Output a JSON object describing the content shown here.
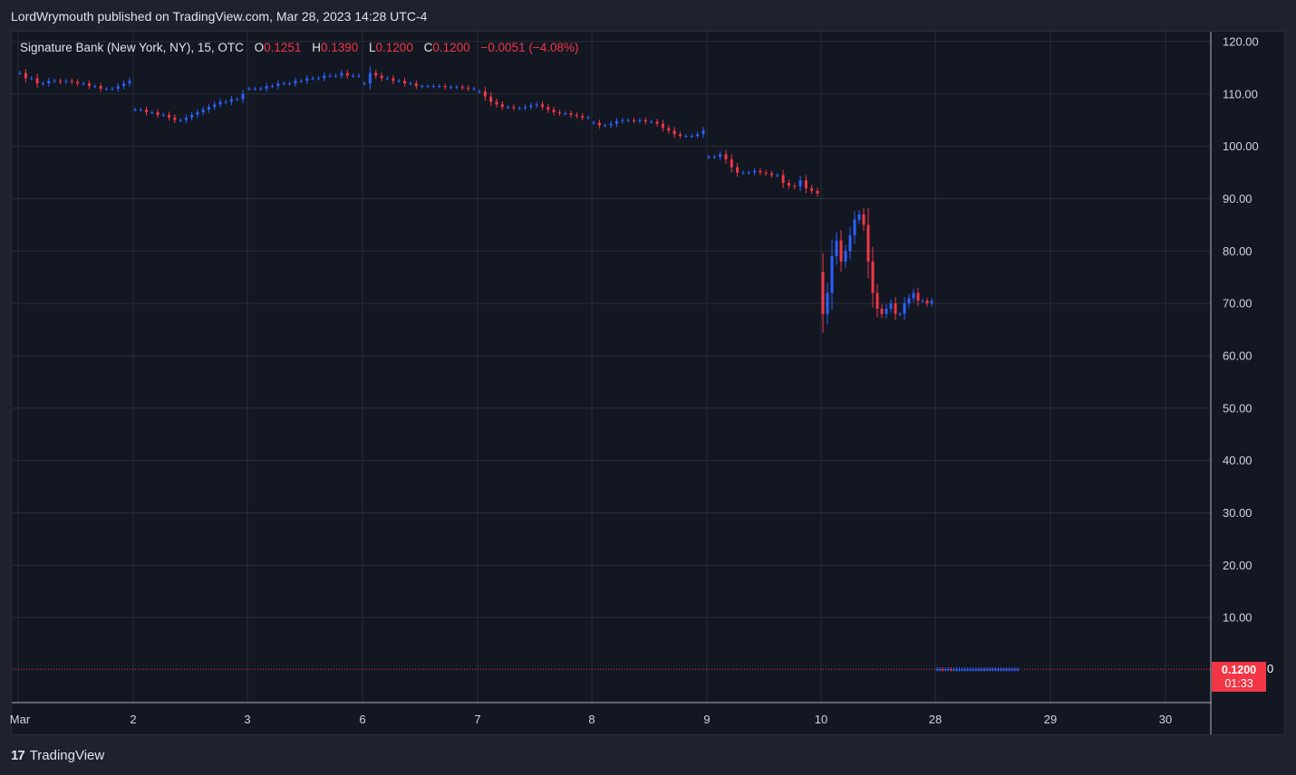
{
  "header": {
    "published_by": "LordWrymouth published on TradingView.com, Mar 28, 2023 14:28 UTC-4"
  },
  "legend": {
    "title": "Signature Bank (New York, NY), 15, OTC",
    "o_label": "O",
    "o_value": "0.1251",
    "h_label": "H",
    "h_value": "0.1390",
    "l_label": "L",
    "l_value": "0.1200",
    "c_label": "C",
    "c_value": "0.1200",
    "change": "−0.0051 (−4.08%)"
  },
  "last_price": {
    "price": "0.1200",
    "countdown": "01:33",
    "suffix": "0"
  },
  "footer": {
    "brand": "TradingView"
  },
  "colors": {
    "up": "#2962ff",
    "down": "#f23645",
    "grid": "#2a2e39",
    "bg": "#131722"
  },
  "chart_data": {
    "type": "candlestick",
    "x_ticks": [
      "Mar",
      "2",
      "3",
      "6",
      "7",
      "8",
      "9",
      "10",
      "28",
      "29",
      "30"
    ],
    "y_ticks": [
      "120.00",
      "110.00",
      "100.00",
      "90.00",
      "80.00",
      "70.00",
      "60.00",
      "50.00",
      "40.00",
      "30.00",
      "20.00",
      "10.00"
    ],
    "ylim": [
      0,
      122
    ],
    "series": [
      {
        "day": "Mar",
        "close": [
          114,
          113,
          113,
          112,
          112,
          112.5,
          112.5,
          112.3,
          112.5,
          112.3,
          112,
          112,
          111.5,
          111.5,
          111,
          111,
          111,
          111.5,
          112,
          112.5
        ]
      },
      {
        "day": "2",
        "close": [
          107,
          107,
          106.5,
          106.5,
          106,
          106,
          105.5,
          105,
          105,
          105.5,
          106,
          106.5,
          107,
          107.5,
          108,
          108.5,
          108.5,
          109,
          109,
          110
        ]
      },
      {
        "day": "3",
        "close": [
          111,
          111,
          111,
          111.5,
          111.5,
          112,
          112,
          112,
          112.5,
          112.5,
          113,
          113,
          113,
          113.5,
          113.5,
          113.5,
          114,
          113.5,
          113.5,
          113.5
        ]
      },
      {
        "day": "6",
        "close": [
          112,
          114,
          113.5,
          113,
          113,
          112.5,
          112.5,
          112,
          112,
          111.5,
          111.5,
          111.5,
          111.5,
          111.5,
          111.3,
          111.3,
          111.3,
          111.2,
          111,
          111
        ]
      },
      {
        "day": "7",
        "close": [
          110.5,
          109.5,
          108.5,
          108,
          107.5,
          107.5,
          107.3,
          107.3,
          107.5,
          107.8,
          108,
          107.5,
          107,
          106.5,
          106.3,
          106.3,
          106,
          105.8,
          105.5,
          105.5
        ]
      },
      {
        "day": "8",
        "close": [
          104.5,
          104,
          104,
          104.3,
          104.8,
          105,
          105,
          104.8,
          105,
          104.7,
          104.7,
          104.3,
          103.5,
          103,
          102.3,
          102,
          102,
          102,
          102.3,
          103
        ]
      },
      {
        "day": "9",
        "close": [
          98,
          98,
          98.5,
          97.5,
          96,
          95,
          95,
          95,
          95.3,
          95,
          94.8,
          94.5,
          94.5,
          93,
          92.5,
          92.3,
          93.5,
          92,
          91.5,
          91
        ]
      },
      {
        "day": "10",
        "close": [
          68,
          72,
          79,
          82,
          78,
          80,
          83,
          86,
          87,
          85,
          78,
          72,
          69,
          68,
          69,
          70,
          68,
          68,
          70,
          71,
          72,
          70.5,
          70.5,
          70,
          70.5
        ]
      },
      {
        "day": "28",
        "close": [
          0.13,
          0.13,
          0.12,
          0.12,
          0.13,
          0.12,
          0.12,
          0.12,
          0.12,
          0.12,
          0.12,
          0.12,
          0.12,
          0.12,
          0.12,
          0.12,
          0.12,
          0.12,
          0.12,
          0.12,
          0.12,
          0.12,
          0.12,
          0.12,
          0.12,
          0.12,
          0.12,
          0.12,
          0.12,
          0.12
        ]
      },
      {
        "day": "29",
        "close": []
      },
      {
        "day": "30",
        "close": []
      }
    ]
  }
}
